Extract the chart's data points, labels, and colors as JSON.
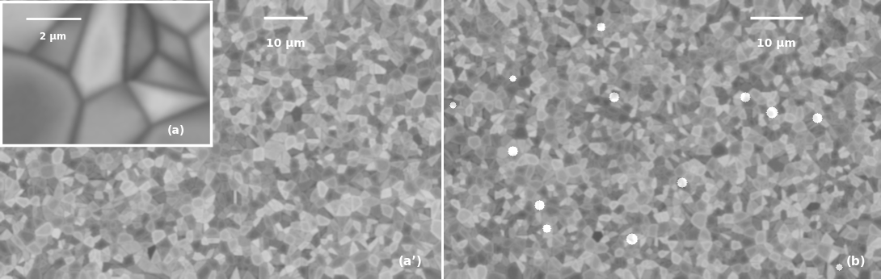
{
  "fig_width": 10.9,
  "fig_height": 3.46,
  "dpi": 100,
  "bg_color": "#ffffff",
  "left_panel_label": "(a’)",
  "left_panel_scalebar": "10 μm",
  "inset_label": "(a)",
  "inset_scalebar": "2 μm",
  "right_panel_label": "(b)",
  "right_panel_scalebar": "10 μm",
  "text_color": "#ffffff",
  "font_size_label": 11,
  "font_size_scale": 10,
  "divider_color": "#ffffff"
}
